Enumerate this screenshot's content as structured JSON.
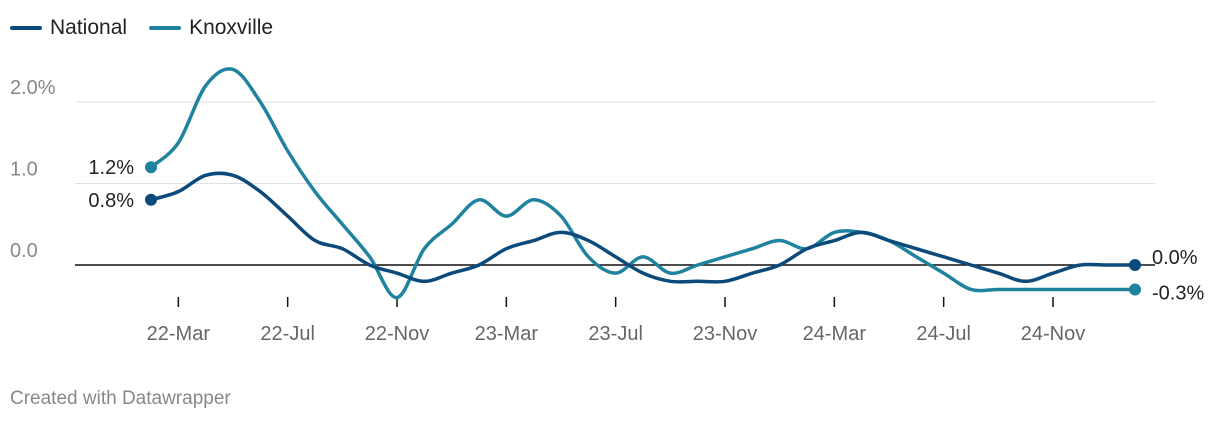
{
  "legend": [
    {
      "label": "National",
      "color": "#0b4a7a"
    },
    {
      "label": "Knoxville",
      "color": "#1f83a0"
    }
  ],
  "footer": "Created with Datawrapper",
  "chart_data": {
    "type": "line",
    "x": [
      "22-Feb",
      "22-Mar",
      "22-Apr",
      "22-May",
      "22-Jun",
      "22-Jul",
      "22-Aug",
      "22-Sep",
      "22-Oct",
      "22-Nov",
      "22-Dec",
      "23-Jan",
      "23-Feb",
      "23-Mar",
      "23-Apr",
      "23-May",
      "23-Jun",
      "23-Jul",
      "23-Aug",
      "23-Sep",
      "23-Oct",
      "23-Nov",
      "23-Dec",
      "24-Jan",
      "24-Feb",
      "24-Mar",
      "24-Apr",
      "24-May",
      "24-Jun",
      "24-Jul",
      "24-Aug",
      "24-Sep",
      "24-Oct",
      "24-Nov",
      "24-Dec",
      "25-Jan",
      "25-Feb"
    ],
    "xticks": [
      "22-Mar",
      "22-Jul",
      "22-Nov",
      "23-Mar",
      "23-Jul",
      "23-Nov",
      "24-Mar",
      "24-Jul",
      "24-Nov"
    ],
    "series": [
      {
        "name": "National",
        "color": "#0b4a7a",
        "values": [
          0.8,
          0.9,
          1.1,
          1.1,
          0.9,
          0.6,
          0.3,
          0.2,
          0.0,
          -0.1,
          -0.2,
          -0.1,
          0.0,
          0.2,
          0.3,
          0.4,
          0.3,
          0.1,
          -0.1,
          -0.2,
          -0.2,
          -0.2,
          -0.1,
          0.0,
          0.2,
          0.3,
          0.4,
          0.3,
          0.2,
          0.1,
          0.0,
          -0.1,
          -0.2,
          -0.1,
          0.0,
          0.0,
          0.0
        ]
      },
      {
        "name": "Knoxville",
        "color": "#1f83a0",
        "values": [
          1.2,
          1.5,
          2.2,
          2.4,
          2.0,
          1.4,
          0.9,
          0.5,
          0.1,
          -0.4,
          0.2,
          0.5,
          0.8,
          0.6,
          0.8,
          0.6,
          0.1,
          -0.1,
          0.1,
          -0.1,
          0.0,
          0.1,
          0.2,
          0.3,
          0.2,
          0.4,
          0.4,
          0.3,
          0.1,
          -0.1,
          -0.3,
          -0.3,
          -0.3,
          -0.3,
          -0.3,
          -0.3,
          -0.3
        ]
      }
    ],
    "yticks": [
      {
        "value": 2.0,
        "label": "2.0%"
      },
      {
        "value": 1.0,
        "label": "1.0"
      },
      {
        "value": 0.0,
        "label": "0.0"
      }
    ],
    "ylim": [
      -0.4,
      2.5
    ],
    "start_labels": [
      "0.8%",
      "1.2%"
    ],
    "end_labels": [
      "0.0%",
      "-0.3%"
    ],
    "grid": true
  }
}
